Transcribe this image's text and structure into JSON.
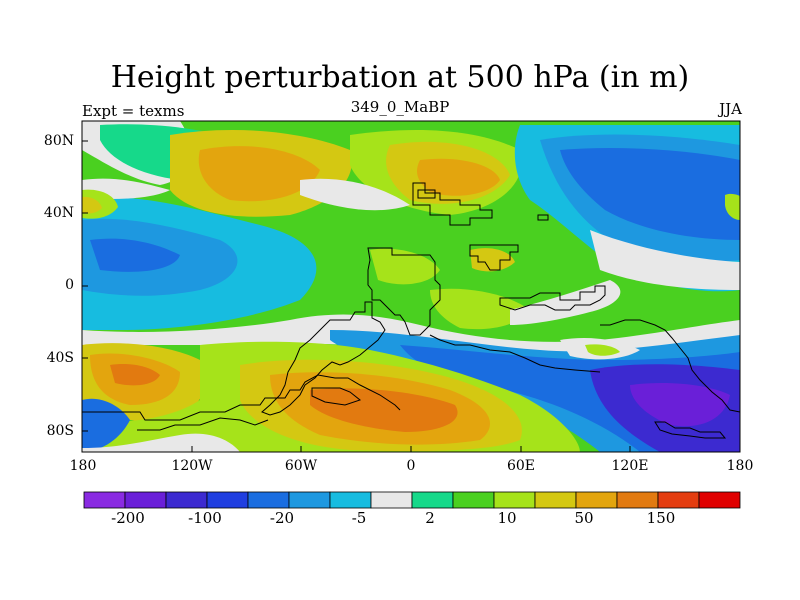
{
  "map": {
    "title": "Height perturbation at 500 hPa (in m)",
    "left_label": "Expt = texms",
    "center_label": "349_0_MaBP",
    "right_label": "JJA",
    "lat_ticks": [
      "80N",
      "40N",
      "0",
      "40S",
      "80S"
    ],
    "lon_ticks": [
      "180",
      "120W",
      "60W",
      "0",
      "60E",
      "120E",
      "180"
    ]
  },
  "colorbar": {
    "colors": [
      "#8a2be2",
      "#6a1fd8",
      "#3c2ad0",
      "#1f3ee0",
      "#1a6de0",
      "#1e98e0",
      "#17bce0",
      "#e8e8e8",
      "#16d98a",
      "#4ad020",
      "#a6e31a",
      "#d4c812",
      "#e3a50e",
      "#e27a10",
      "#e43d10",
      "#e00000"
    ],
    "labels": [
      "-200",
      "-100",
      "-20",
      "-5",
      "2",
      "10",
      "50",
      "150"
    ]
  },
  "colors": {
    "land_outline": "#000000",
    "frame": "#000000"
  }
}
